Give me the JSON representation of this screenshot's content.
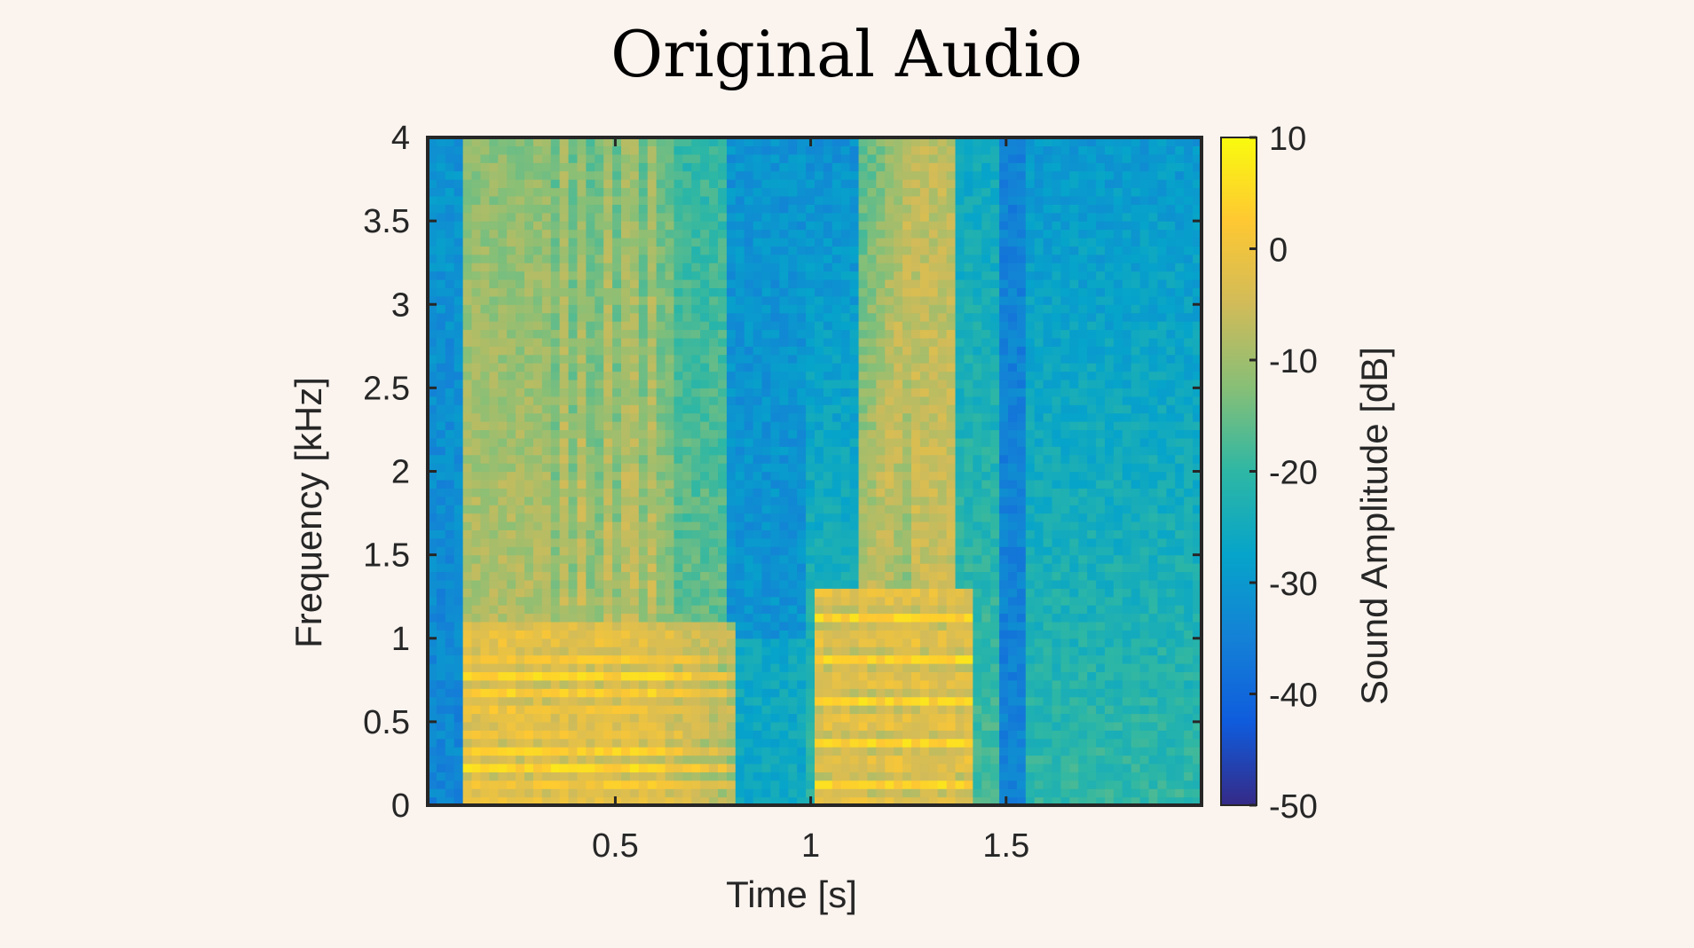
{
  "chart_data": {
    "type": "heatmap",
    "title": "Original Audio",
    "xlabel": "Time [s]",
    "ylabel": "Frequency [kHz]",
    "xlim": [
      0.02,
      2.0
    ],
    "ylim": [
      0,
      4
    ],
    "x_ticks": [
      0.5,
      1,
      1.5
    ],
    "x_tick_labels": [
      "0.5",
      "1",
      "1.5"
    ],
    "y_ticks": [
      0,
      0.5,
      1,
      1.5,
      2,
      2.5,
      3,
      3.5,
      4
    ],
    "y_tick_labels": [
      "0",
      "0.5",
      "1",
      "1.5",
      "2",
      "2.5",
      "3",
      "3.5",
      "4"
    ],
    "time_bins": 88,
    "freq_bins": 80,
    "colorbar": {
      "label": "Sound Amplitude [dB]",
      "limits": [
        -50,
        10
      ],
      "ticks": [
        10,
        0,
        -10,
        -20,
        -30,
        -40,
        -50
      ],
      "tick_labels": [
        "10",
        "0",
        "-10",
        "-20",
        "-30",
        "-40",
        "-50"
      ],
      "colormap": "parula"
    },
    "description_regions": [
      {
        "t_start": 0.02,
        "t_end": 0.1,
        "level_db": -32
      },
      {
        "t_start": 0.12,
        "t_end": 0.78,
        "level_db": -5
      },
      {
        "t_start": 0.78,
        "t_end": 1.0,
        "level_db": -30
      },
      {
        "t_start": 1.0,
        "t_end": 1.45,
        "level_db": -8
      },
      {
        "t_start": 1.5,
        "t_end": 2.0,
        "level_db": -25
      }
    ]
  }
}
